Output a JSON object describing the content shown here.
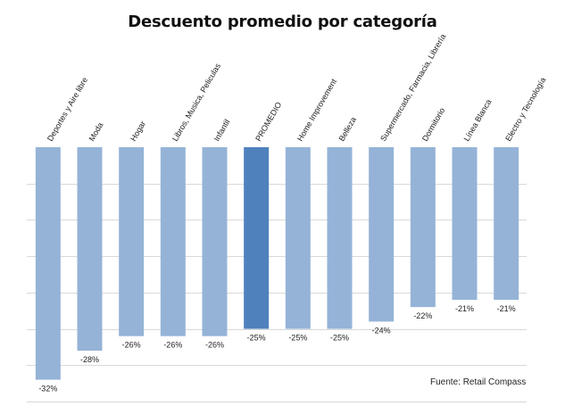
{
  "chart_data": {
    "type": "bar",
    "title": "Descuento promedio por categoría",
    "categories": [
      "Deportes y Aire libre",
      "Moda",
      "Hogar",
      "Libros, Musica, Peliculas",
      "Infantil",
      "PROMEDIO",
      "Home Improvement",
      "Belleza",
      "Supermercado, Farmacia, Librería",
      "Dormitorio",
      "Línea Blanca",
      "Electro y Tecnología"
    ],
    "values": [
      -32,
      -28,
      -26,
      -26,
      -26,
      -25,
      -25,
      -25,
      -24,
      -22,
      -21,
      -21
    ],
    "data_labels": [
      "-32%",
      "-28%",
      "-26%",
      "-26%",
      "-26%",
      "-25%",
      "-25%",
      "-25%",
      "-24%",
      "-22%",
      "-21%",
      "-21%"
    ],
    "ylim": [
      -35,
      0
    ],
    "grid": true,
    "legend": "none",
    "colors": {
      "bar": "#95b3d7",
      "highlight": "#4f81bd",
      "grid": "#d9d9d9"
    },
    "highlight_category": "PROMEDIO"
  },
  "source": "Fuente: Retail Compass"
}
